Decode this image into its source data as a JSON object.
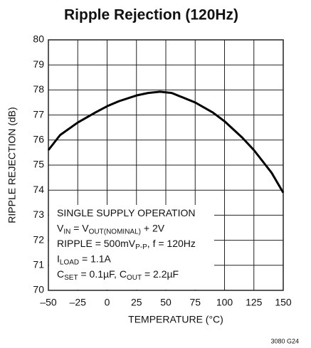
{
  "chart_data": {
    "type": "line",
    "title": "Ripple Rejection (120Hz)",
    "x_label": "TEMPERATURE (°C)",
    "y_label": "RIPPLE REJECTION (dB)",
    "footnote": "3080 G24",
    "xlim": [
      -50,
      150
    ],
    "ylim": [
      70,
      80
    ],
    "xticks": [
      {
        "value": -50,
        "label": "–50"
      },
      {
        "value": -25,
        "label": "–25"
      },
      0,
      25,
      50,
      75,
      100,
      125,
      150
    ],
    "yticks": [
      70,
      71,
      72,
      73,
      74,
      75,
      76,
      77,
      78,
      79,
      80
    ],
    "grid": true,
    "series": [
      {
        "color": "#000000",
        "x": [
          -50,
          -40,
          -25,
          -10,
          0,
          10,
          25,
          35,
          45,
          55,
          75,
          90,
          100,
          115,
          125,
          135,
          140,
          145,
          150
        ],
        "values": [
          75.6,
          76.2,
          76.7,
          77.1,
          77.35,
          77.55,
          77.78,
          77.88,
          77.93,
          77.88,
          77.5,
          77.1,
          76.75,
          76.1,
          75.6,
          75.0,
          74.7,
          74.3,
          73.9
        ]
      }
    ],
    "annotation": [
      [
        {
          "text": "SINGLE SUPPLY OPERATION"
        }
      ],
      [
        {
          "text": "V"
        },
        {
          "text": "IN",
          "sub": true
        },
        {
          "text": " = V"
        },
        {
          "text": "OUT(NOMINAL)",
          "sub": true
        },
        {
          "text": " + 2V"
        }
      ],
      [
        {
          "text": "RIPPLE = 500mV"
        },
        {
          "text": "P-P",
          "sub": true
        },
        {
          "text": ", f = 120Hz"
        }
      ],
      [
        {
          "text": "I"
        },
        {
          "text": "LOAD",
          "sub": true
        },
        {
          "text": " = 1.1A"
        }
      ],
      [
        {
          "text": "C"
        },
        {
          "text": "SET",
          "sub": true
        },
        {
          "text": " = 0.1µF, C"
        },
        {
          "text": "OUT",
          "sub": true
        },
        {
          "text": " = 2.2µF"
        }
      ]
    ]
  }
}
